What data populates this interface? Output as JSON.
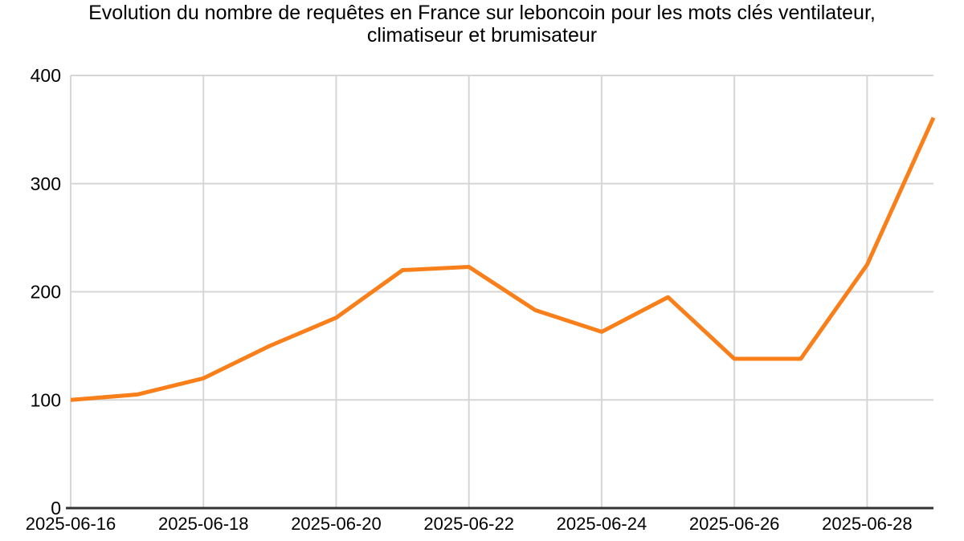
{
  "chart_data": {
    "type": "line",
    "title": "Evolution du nombre de requêtes en France sur leboncoin pour les mots clés ventilateur, climatiseur et brumisateur",
    "title_lines": [
      "Evolution du nombre de requêtes en France sur leboncoin pour les mots clés ventilateur,",
      "climatiseur et brumisateur"
    ],
    "x": [
      "2025-06-16",
      "2025-06-17",
      "2025-06-18",
      "2025-06-19",
      "2025-06-20",
      "2025-06-21",
      "2025-06-22",
      "2025-06-23",
      "2025-06-24",
      "2025-06-25",
      "2025-06-26",
      "2025-06-27",
      "2025-06-28",
      "2025-06-29"
    ],
    "values": [
      100,
      105,
      120,
      150,
      176,
      220,
      223,
      183,
      163,
      195,
      138,
      138,
      225,
      361
    ],
    "x_tick_labels": [
      "2025-06-16",
      "2025-06-18",
      "2025-06-20",
      "2025-06-22",
      "2025-06-24",
      "2025-06-26",
      "2025-06-28"
    ],
    "x_tick_every": 2,
    "y_ticks": [
      0,
      100,
      200,
      300,
      400
    ],
    "ylim": [
      0,
      400
    ],
    "grid": true,
    "legend": "none",
    "colors": {
      "line": "#f87f1a",
      "grid": "#d6d6d6",
      "axis": "#333333",
      "text": "#000000",
      "background": "#ffffff"
    }
  }
}
